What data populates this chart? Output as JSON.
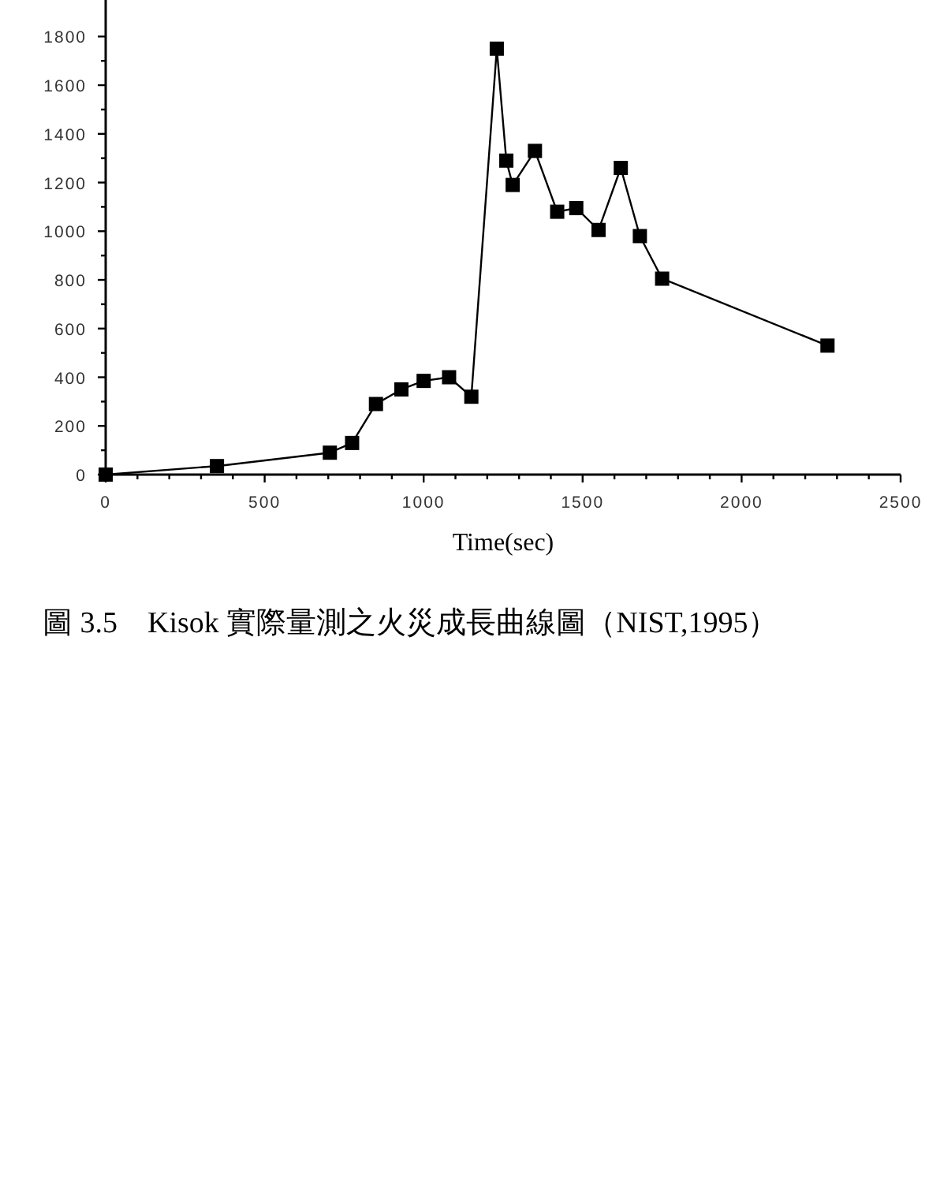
{
  "chart_data": {
    "type": "line",
    "xlabel": "Time(sec)",
    "annotations": [
      "圖 3.5　Kisok 實際量測之火災成長曲線圖（NIST,1995）"
    ],
    "x": [
      0,
      350,
      705,
      775,
      850,
      930,
      1000,
      1080,
      1150,
      1230,
      1260,
      1280,
      1350,
      1420,
      1480,
      1550,
      1620,
      1680,
      1750,
      2270
    ],
    "series": [
      {
        "color": "#000000",
        "values": [
          0,
          35,
          90,
          130,
          290,
          350,
          385,
          400,
          320,
          1750,
          1290,
          1190,
          1330,
          1080,
          1095,
          1005,
          1260,
          980,
          805,
          530
        ]
      }
    ],
    "xlim": [
      0,
      2500
    ],
    "xticks": [
      0,
      {
        "value": 100,
        "label": null
      },
      {
        "value": 200,
        "label": null
      },
      {
        "value": 300,
        "label": null
      },
      {
        "value": 400,
        "label": null
      },
      500,
      {
        "value": 600,
        "label": null
      },
      {
        "value": 700,
        "label": null
      },
      {
        "value": 800,
        "label": null
      },
      {
        "value": 900,
        "label": null
      },
      1000,
      {
        "value": 1100,
        "label": null
      },
      {
        "value": 1200,
        "label": null
      },
      {
        "value": 1300,
        "label": null
      },
      {
        "value": 1400,
        "label": null
      },
      1500,
      {
        "value": 1600,
        "label": null
      },
      {
        "value": 1700,
        "label": null
      },
      {
        "value": 1800,
        "label": null
      },
      {
        "value": 1900,
        "label": null
      },
      2000,
      {
        "value": 2100,
        "label": null
      },
      {
        "value": 2200,
        "label": null
      },
      {
        "value": 2300,
        "label": null
      },
      {
        "value": 2400,
        "label": null
      },
      2500
    ],
    "ylim": [
      0,
      1950
    ],
    "yticks": [
      0,
      {
        "value": 100,
        "label": null
      },
      200,
      {
        "value": 300,
        "label": null
      },
      400,
      {
        "value": 500,
        "label": null
      },
      600,
      {
        "value": 700,
        "label": null
      },
      800,
      {
        "value": 900,
        "label": null
      },
      1000,
      {
        "value": 1100,
        "label": null
      },
      1200,
      {
        "value": 1300,
        "label": null
      },
      1400,
      {
        "value": 1500,
        "label": null
      },
      1600,
      {
        "value": 1700,
        "label": null
      },
      1800
    ],
    "marker": "square",
    "line_style": "solid"
  }
}
